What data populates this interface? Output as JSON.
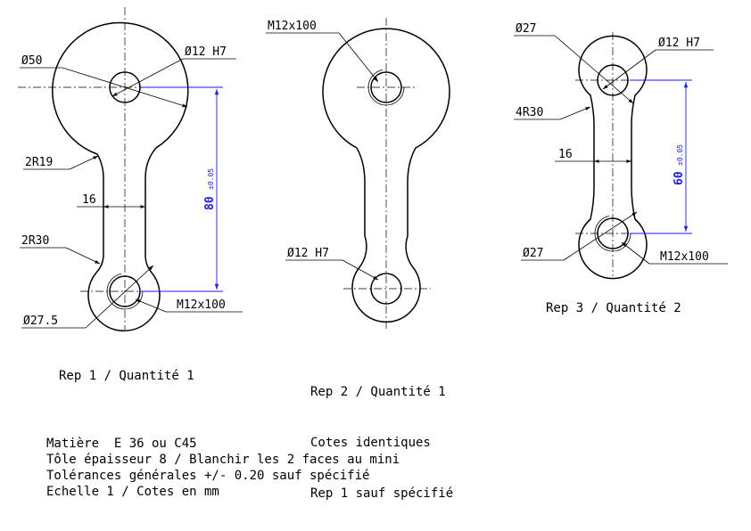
{
  "part1": {
    "dims": {
      "d50": "Ø50",
      "d12h7": "Ø12 H7",
      "r19": "2R19",
      "w16": "16",
      "r30": "2R30",
      "d27_5": "Ø27.5",
      "m12": "M12x100",
      "len": "80",
      "tol": "±0.05"
    },
    "caption": "Rep 1 / Quantité 1"
  },
  "part2": {
    "dims": {
      "m12": "M12x100",
      "d12h7": "Ø12 H7"
    },
    "caption": [
      "Rep 2 / Quantité 1",
      "Cotes identiques",
      "Rep 1 sauf spécifié"
    ]
  },
  "part3": {
    "dims": {
      "d27_top": "Ø27",
      "d12h7": "Ø12 H7",
      "r30": "4R30",
      "w16": "16",
      "d27_bot": "Ø27",
      "m12": "M12x100",
      "len": "60",
      "tol": "±0.05"
    },
    "caption": "Rep 3 / Quantité 2"
  },
  "notes": [
    "Matière  E 36 ou C45",
    "Tôle épaisseur 8 / Blanchir les 2 faces au mini",
    "Tolérances générales +/- 0.20 sauf spécifié",
    "Echelle 1 / Cotes en mm"
  ],
  "colors": {
    "outline": "#000000",
    "dimension_blue": "#1a1aff"
  }
}
